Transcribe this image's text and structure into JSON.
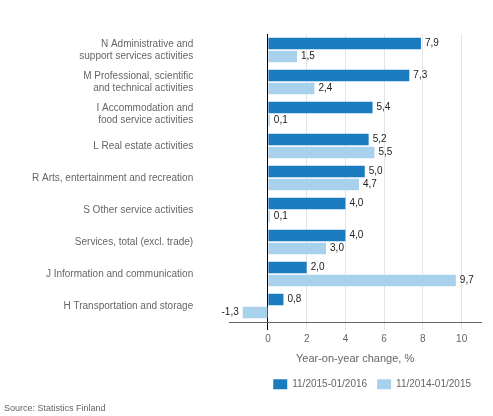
{
  "chart_data": {
    "type": "bar",
    "orientation": "horizontal",
    "categories": [
      "N Administrative and\nsupport services activities",
      "M Professional, scientific\nand technical activities",
      "I Accommodation and\nfood service activities",
      "L Real estate activities",
      "R Arts, entertainment and recreation",
      "S Other service activities",
      "Services, total (excl. trade)",
      "J Information and communication",
      "H Transportation and storage"
    ],
    "series": [
      {
        "name": "11/2015-01/2016",
        "color": "#1A7BBF",
        "values": [
          7.9,
          7.3,
          5.4,
          5.2,
          5.0,
          4.0,
          4.0,
          2.0,
          0.8
        ],
        "value_labels": [
          "7,9",
          "7,3",
          "5,4",
          "5,2",
          "5,0",
          "4,0",
          "4,0",
          "2,0",
          "0,8"
        ]
      },
      {
        "name": "11/2014-01/2015",
        "color": "#A8D1EC",
        "values": [
          1.5,
          2.4,
          0.1,
          5.5,
          4.7,
          0.1,
          3.0,
          9.7,
          -1.3
        ],
        "value_labels": [
          "1,5",
          "2,4",
          "0,1",
          "5,5",
          "4,7",
          "0,1",
          "3,0",
          "9,7",
          "-1,3"
        ]
      }
    ],
    "xlabel": "Year-on-year change, %",
    "xlim": [
      -2,
      11
    ],
    "xticks": [
      0,
      2,
      4,
      6,
      8,
      10
    ],
    "grid": true,
    "legend": "lower right",
    "data_labels": true,
    "source": "Source: Statistics Finland"
  }
}
